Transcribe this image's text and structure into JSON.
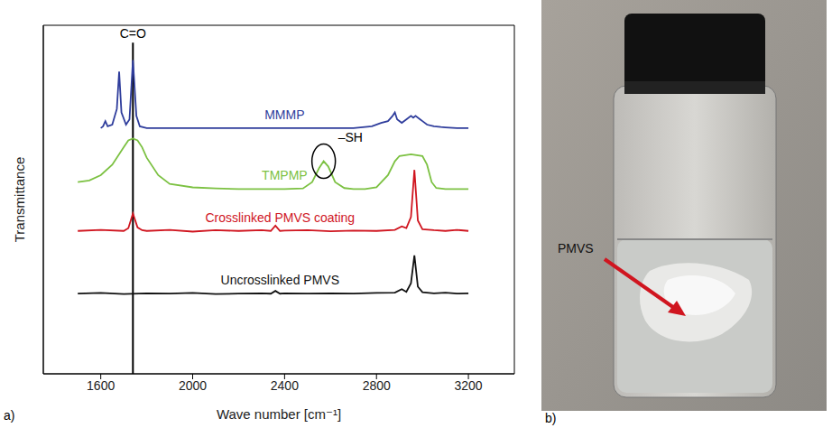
{
  "chart_data": {
    "type": "line",
    "panel_label": "a)",
    "x_label": "Wave number [cm⁻¹]",
    "y_label": "Transmittance",
    "xlim": [
      1350,
      3400
    ],
    "xticks": [
      1600,
      2000,
      2400,
      2800,
      3200
    ],
    "ylim": [
      0,
      100
    ],
    "grid": false,
    "tick_labels": "x",
    "annotations": [
      {
        "text": "C=O",
        "x": 1740,
        "y": 95
      },
      {
        "text": "–SH",
        "x": 2570,
        "y": 61
      }
    ],
    "series": [
      {
        "name": "MMMP",
        "color": "#2f3d9c",
        "x": [
          1600,
          1610,
          1620,
          1630,
          1650,
          1670,
          1680,
          1690,
          1710,
          1725,
          1740,
          1755,
          1770,
          1800,
          1900,
          2000,
          2100,
          2200,
          2300,
          2400,
          2500,
          2600,
          2700,
          2780,
          2820,
          2850,
          2870,
          2880,
          2890,
          2910,
          2930,
          2950,
          2960,
          2970,
          2990,
          3000,
          3020,
          3050,
          3080,
          3100,
          3150,
          3200
        ],
        "values": [
          70.5,
          71,
          72.5,
          71,
          71.5,
          76,
          86.7,
          75,
          71.5,
          73,
          90,
          74,
          71,
          70.5,
          70.5,
          70.5,
          70.5,
          70.5,
          70.5,
          70.5,
          70.5,
          70.5,
          70.5,
          71,
          72,
          72.5,
          74,
          75,
          73,
          72,
          73,
          74,
          73.5,
          74,
          73,
          72.5,
          71.5,
          71,
          70.8,
          70.7,
          70.5,
          70.5
        ]
      },
      {
        "name": "TMPMP",
        "color": "#7cc142",
        "x": [
          1500,
          1550,
          1600,
          1650,
          1700,
          1720,
          1740,
          1760,
          1780,
          1800,
          1850,
          1900,
          2000,
          2100,
          2200,
          2300,
          2400,
          2480,
          2520,
          2550,
          2570,
          2590,
          2620,
          2660,
          2700,
          2750,
          2800,
          2850,
          2880,
          2900,
          2950,
          3000,
          3020,
          3040,
          3060,
          3100,
          3150,
          3200
        ],
        "values": [
          55,
          55.5,
          57,
          60,
          65,
          67,
          67.5,
          67,
          65,
          62,
          57,
          54.5,
          53.5,
          53.2,
          53,
          53,
          53,
          53.2,
          55,
          59,
          61,
          59.5,
          55,
          53.3,
          53,
          53,
          53.5,
          57,
          61,
          62.5,
          63,
          62.5,
          60,
          55,
          53.3,
          53,
          53,
          53
        ]
      },
      {
        "name": "Crosslinked PMVS coating",
        "color": "#d0151f",
        "x": [
          1500,
          1600,
          1700,
          1720,
          1740,
          1760,
          1780,
          1800,
          1900,
          2000,
          2100,
          2200,
          2300,
          2340,
          2360,
          2380,
          2400,
          2500,
          2600,
          2700,
          2800,
          2880,
          2910,
          2930,
          2950,
          2965,
          2980,
          3000,
          3050,
          3100,
          3150,
          3200
        ],
        "values": [
          41,
          41.3,
          41,
          41.8,
          46,
          42,
          41.2,
          41,
          41.3,
          40.8,
          41.2,
          41,
          41.2,
          41,
          42.5,
          41,
          41.1,
          41.2,
          40.9,
          41.1,
          41,
          41.3,
          42.3,
          41.8,
          45,
          58.5,
          44,
          41.5,
          41.2,
          41,
          41.3,
          41
        ]
      },
      {
        "name": "Uncrosslinked PMVS",
        "color": "#111111",
        "x": [
          1500,
          1600,
          1700,
          1800,
          1900,
          2000,
          2100,
          2200,
          2300,
          2340,
          2360,
          2380,
          2400,
          2500,
          2600,
          2700,
          2800,
          2880,
          2910,
          2930,
          2950,
          2965,
          2980,
          3000,
          3050,
          3100,
          3150,
          3200
        ],
        "values": [
          23,
          23.2,
          22.9,
          23.1,
          23,
          23.2,
          22.9,
          23,
          23.1,
          23,
          23.8,
          23,
          23.1,
          23,
          23.1,
          23,
          23.2,
          23.3,
          24.3,
          23.5,
          26,
          34,
          25,
          23.4,
          23.1,
          23.3,
          23,
          23.1
        ]
      }
    ]
  },
  "photo": {
    "panel_label": "b)",
    "annotation": "PMVS"
  }
}
